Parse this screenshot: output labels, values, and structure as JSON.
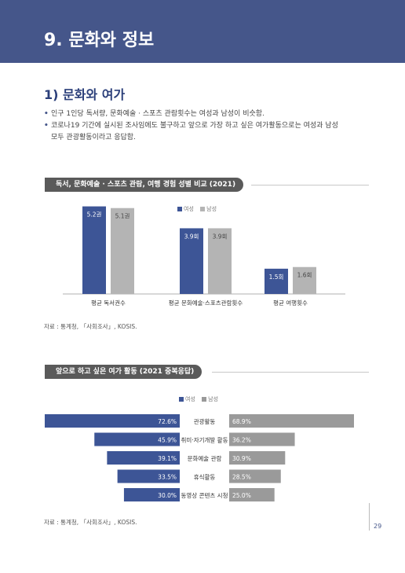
{
  "header": {
    "title": "9. 문화와 정보"
  },
  "section": {
    "title": "1) 문화와 여가"
  },
  "bullets": [
    "인구 1인당 독서량, 문화예술 · 스포츠 관람횟수는 여성과 남성이 비슷함.",
    "코로나19 기간에 실시된 조사임에도 불구하고 앞으로 가장 하고 싶은 여가활동으로는 여성과 남성",
    "모두 관광활동이라고 응답함."
  ],
  "bullet_marker": "•",
  "colors": {
    "female": "#3d5596",
    "male": "#b4b4b4",
    "male_hbar": "#9a9a9a",
    "header": "#45568a"
  },
  "chart_data": [
    {
      "type": "bar",
      "title": "독서, 문화예술 · 스포츠 관람, 여행 경험 성별 비교 (2021)",
      "legend": [
        "여성",
        "남성"
      ],
      "legend_position": "top-center",
      "categories": [
        "평균 독서권수",
        "평균 문화예술·스포츠관람횟수",
        "평균 여행횟수"
      ],
      "series": [
        {
          "name": "여성",
          "values": [
            5.2,
            3.9,
            1.5
          ],
          "labels": [
            "5.2권",
            "3.9회",
            "1.5회"
          ]
        },
        {
          "name": "남성",
          "values": [
            5.1,
            3.9,
            1.6
          ],
          "labels": [
            "5.1권",
            "3.9회",
            "1.6회"
          ]
        }
      ],
      "ylim": [
        0,
        5.6
      ],
      "grid": false
    },
    {
      "type": "bar",
      "orientation": "horizontal-butterfly",
      "title": "앞으로 하고 싶은 여가 활동 (2021 중복응답)",
      "legend": [
        "여성",
        "남성"
      ],
      "legend_position": "top-center",
      "categories": [
        "관광활동",
        "취미·자기개발 활동",
        "문화예술 관람",
        "휴식활동",
        "동영상 콘텐츠 시청"
      ],
      "series": [
        {
          "name": "여성",
          "values": [
            72.6,
            45.9,
            39.1,
            33.5,
            30.0
          ],
          "labels": [
            "72.6%",
            "45.9%",
            "39.1%",
            "33.5%",
            "30.0%"
          ]
        },
        {
          "name": "남성",
          "values": [
            68.9,
            36.2,
            30.9,
            28.5,
            25.0
          ],
          "labels": [
            "68.9%",
            "36.2%",
            "30.9%",
            "28.5%",
            "25.0%"
          ]
        }
      ],
      "xlim": [
        0,
        80
      ],
      "grid": false
    }
  ],
  "source_note": "자료 : 통계청, 「사회조사」, KOSIS.",
  "page_number": "29"
}
